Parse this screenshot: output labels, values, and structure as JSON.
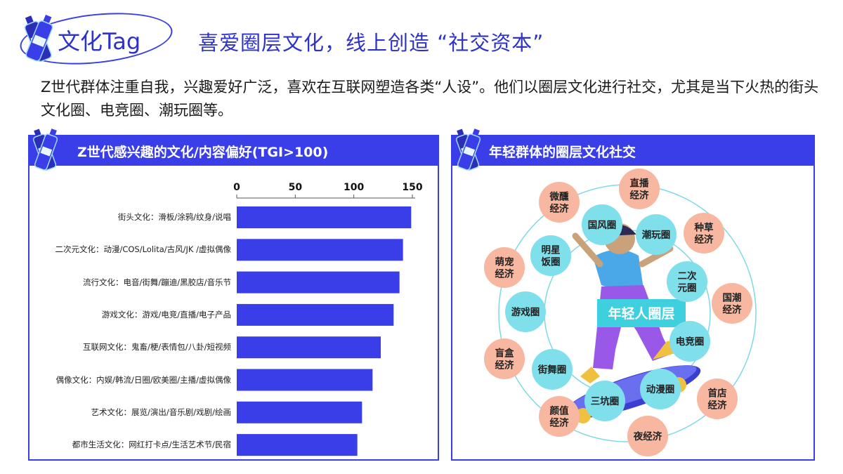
{
  "header": {
    "logo_text": "文化Tag",
    "headline": "喜爱圈层文化，线上创造 “社交资本”",
    "intro": "Z世代群体注重自我，兴趣爱好广泛，喜欢在互联网塑造各类“人设”。他们以圈层文化进行社交，尤其是当下火热的街头文化圈、电竞圈、潮玩圈等。"
  },
  "left_panel": {
    "title": "Z世代感兴趣的文化/内容偏好(TGI>100)"
  },
  "right_panel": {
    "title": "年轻群体的圈层文化社交",
    "center_label": "年轻人圈层",
    "inner_circles": [
      "国风圈",
      "潮玩圈",
      "二次元圈",
      "电竞圈",
      "动漫圈",
      "三坑圈",
      "街舞圈",
      "游戏圈",
      "明星饭圈"
    ],
    "outer_circles": [
      "直播经济",
      "种草经济",
      "国潮经济",
      "首店经济",
      "夜经济",
      "颜值经济",
      "盲盒经济",
      "萌宠经济",
      "微醺经济"
    ]
  },
  "chart_data": {
    "type": "bar",
    "orientation": "horizontal",
    "title": "Z世代感兴趣的文化/内容偏好(TGI>100)",
    "categories": [
      "街头文化：滑板/涂鸦/纹身/说唱",
      "二次元文化：动漫/COS/Lolita/古风/JK /虚拟偶像",
      "流行文化：电音/街舞/蹦迪/黑胶店/音乐节",
      "游戏文化：游戏/电竞/直播/电子产品",
      "互联网文化：鬼畜/梗/表情包/八卦/短视频",
      "偶像文化：内娱/韩流/日圈/欧美圈/主播/虚拟偶像",
      "艺术文化：展览/演出/音乐剧/戏剧/绘画",
      "都市生活文化：网红打卡点/生活艺术节/民宿"
    ],
    "values": [
      149,
      142,
      139,
      134,
      123,
      116,
      107,
      103
    ],
    "xlim": [
      0,
      150
    ],
    "xticks": [
      "0",
      "50",
      "100",
      "150"
    ],
    "axis_position": "top",
    "bar_color": "#3a3ee8",
    "grid": false
  },
  "colors": {
    "accent": "#3a3ee8",
    "inner_circle": "#7fe0ec",
    "outer_circle": "#f8b7a0",
    "center_box": "#3fd0e0"
  }
}
